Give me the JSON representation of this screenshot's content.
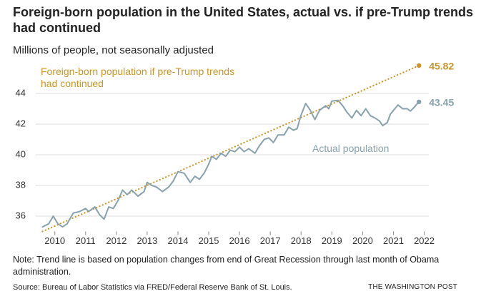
{
  "chart_data": {
    "type": "line",
    "title": "Foreign-born population in the United States, actual vs. if pre-Trump trends had continued",
    "subtitle": "Millions of people, not seasonally adjusted",
    "note": "Note: Trend line is based on population changes from end of Great Recession through last month of Obama administration.",
    "source": "Source: Bureau of Labor Statistics via FRED/Federal Reserve Bank of St. Louis.",
    "credit": "THE WASHINGTON POST",
    "xlim": [
      2009.38,
      2022.15
    ],
    "xticks": [
      2010,
      2011,
      2012,
      2013,
      2014,
      2015,
      2016,
      2017,
      2018,
      2019,
      2020,
      2021,
      2022
    ],
    "ylim": [
      35,
      46
    ],
    "yticks": [
      36,
      38,
      40,
      42,
      44
    ],
    "grid": true,
    "series": [
      {
        "name": "Foreign-born population if pre-Trump trends had continued",
        "color": "#c9952a",
        "style": "dotted",
        "x": [
          2009.6,
          2021.83
        ],
        "values": [
          35.0,
          45.82
        ]
      },
      {
        "name": "Actual population",
        "color": "#87a2ac",
        "style": "solid",
        "x": [
          2009.6,
          2009.8,
          2009.95,
          2010.1,
          2010.25,
          2010.4,
          2010.6,
          2010.8,
          2011.0,
          2011.1,
          2011.3,
          2011.45,
          2011.6,
          2011.75,
          2011.9,
          2012.05,
          2012.2,
          2012.35,
          2012.5,
          2012.7,
          2012.9,
          2013.0,
          2013.15,
          2013.3,
          2013.5,
          2013.7,
          2013.85,
          2014.0,
          2014.2,
          2014.4,
          2014.55,
          2014.7,
          2014.85,
          2015.0,
          2015.1,
          2015.25,
          2015.4,
          2015.55,
          2015.7,
          2015.85,
          2016.0,
          2016.15,
          2016.3,
          2016.5,
          2016.65,
          2016.8,
          2016.95,
          2017.1,
          2017.25,
          2017.45,
          2017.6,
          2017.75,
          2017.87,
          2018.0,
          2018.15,
          2018.3,
          2018.45,
          2018.6,
          2018.8,
          2018.9,
          2019.0,
          2019.2,
          2019.35,
          2019.5,
          2019.65,
          2019.8,
          2019.95,
          2020.1,
          2020.25,
          2020.4,
          2020.55,
          2020.65,
          2020.8,
          2020.9,
          2021.0,
          2021.15,
          2021.3,
          2021.45,
          2021.55,
          2021.65,
          2021.83
        ],
        "values": [
          35.3,
          35.5,
          36.0,
          35.5,
          35.3,
          35.5,
          36.2,
          36.3,
          36.5,
          36.3,
          36.6,
          36.1,
          35.8,
          36.6,
          36.5,
          37.0,
          37.7,
          37.4,
          37.7,
          37.3,
          37.6,
          38.2,
          38.0,
          37.9,
          37.6,
          37.9,
          38.3,
          38.9,
          38.8,
          38.2,
          38.6,
          38.4,
          38.8,
          39.4,
          39.9,
          39.7,
          40.1,
          39.9,
          40.3,
          40.2,
          40.5,
          40.2,
          40.4,
          40.1,
          40.6,
          41.0,
          41.1,
          40.8,
          41.3,
          41.3,
          41.8,
          41.6,
          41.7,
          42.6,
          43.35,
          42.9,
          42.3,
          42.9,
          43.2,
          43.0,
          43.5,
          43.55,
          43.2,
          42.75,
          42.4,
          42.9,
          42.55,
          43.0,
          42.55,
          42.4,
          42.2,
          41.9,
          42.1,
          42.65,
          42.9,
          43.25,
          43.0,
          43.0,
          42.85,
          43.05,
          43.45
        ]
      }
    ]
  }
}
